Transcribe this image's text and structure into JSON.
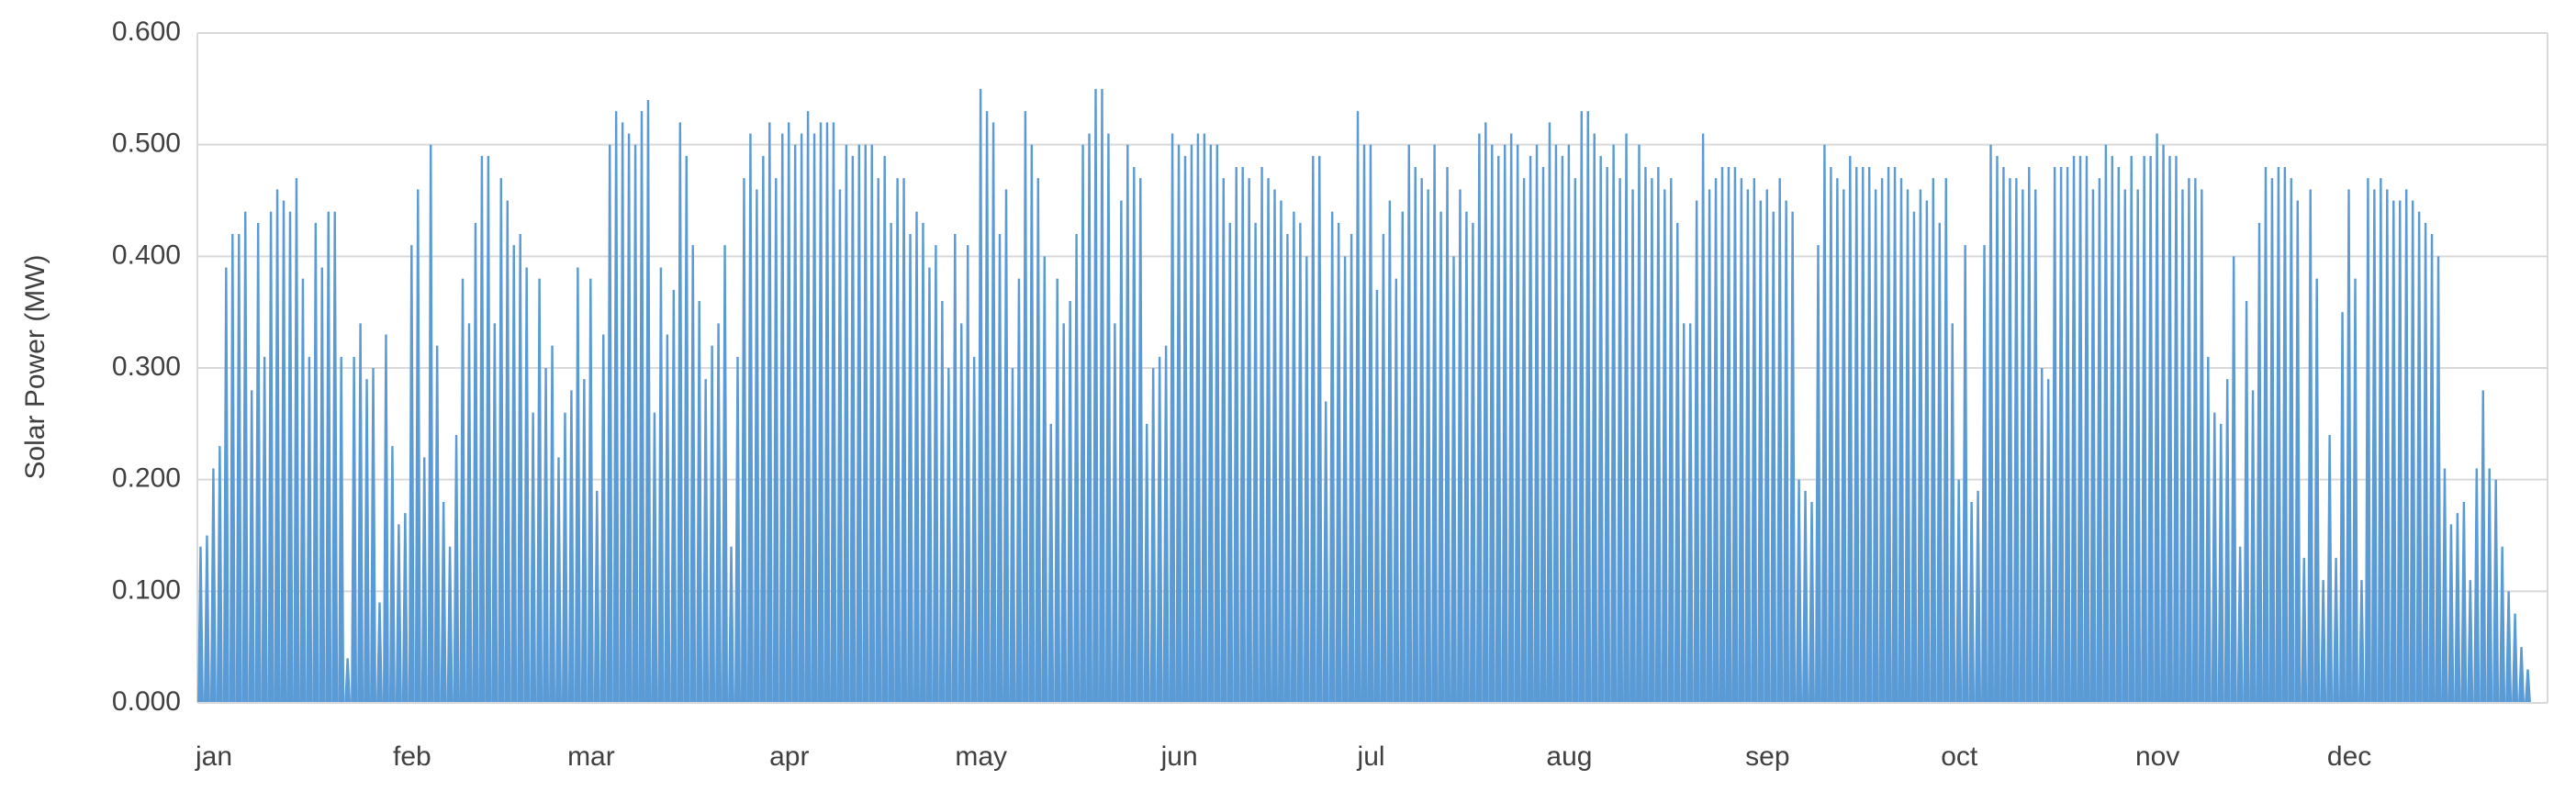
{
  "chart_data": {
    "type": "spikes",
    "y_label": "Solar Power (MW)",
    "color": "#5b9bd5",
    "grid": true,
    "categories": [
      "jan",
      "feb",
      "mar",
      "apr",
      "may",
      "jun",
      "jul",
      "aug",
      "sep",
      "oct",
      "nov",
      "dec"
    ],
    "values": [
      [
        0.14,
        0.15,
        0.21,
        0.23,
        0.39,
        0.42,
        0.42,
        0.44,
        0.28,
        0.43,
        0.31,
        0.44,
        0.46,
        0.45,
        0.44,
        0.47,
        0.38,
        0.31,
        0.43,
        0.39,
        0.44,
        0.44,
        0.31,
        0.04,
        0.31,
        0.34,
        0.29,
        0.3,
        0.09,
        0.33,
        0.23
      ],
      [
        0.16,
        0.17,
        0.41,
        0.46,
        0.22,
        0.5,
        0.32,
        0.18,
        0.14,
        0.24,
        0.38,
        0.34,
        0.43,
        0.49,
        0.49,
        0.34,
        0.47,
        0.45,
        0.41,
        0.42,
        0.39,
        0.26,
        0.38,
        0.3,
        0.32,
        0.22,
        0.26,
        0.28
      ],
      [
        0.39,
        0.29,
        0.38,
        0.19,
        0.33,
        0.5,
        0.53,
        0.52,
        0.51,
        0.5,
        0.53,
        0.54,
        0.26,
        0.39,
        0.33,
        0.37,
        0.52,
        0.49,
        0.41,
        0.36,
        0.29,
        0.32,
        0.34,
        0.41,
        0.14,
        0.31,
        0.47,
        0.51,
        0.46,
        0.49,
        0.52
      ],
      [
        0.47,
        0.51,
        0.52,
        0.5,
        0.51,
        0.53,
        0.51,
        0.52,
        0.52,
        0.52,
        0.46,
        0.5,
        0.49,
        0.5,
        0.5,
        0.5,
        0.47,
        0.49,
        0.43,
        0.47,
        0.47,
        0.42,
        0.44,
        0.43,
        0.39,
        0.41,
        0.36,
        0.3,
        0.42,
        0.34
      ],
      [
        0.41,
        0.31,
        0.55,
        0.53,
        0.52,
        0.42,
        0.46,
        0.3,
        0.38,
        0.53,
        0.5,
        0.47,
        0.4,
        0.25,
        0.38,
        0.34,
        0.36,
        0.42,
        0.5,
        0.51,
        0.55,
        0.55,
        0.51,
        0.34,
        0.45,
        0.5,
        0.48,
        0.47,
        0.25,
        0.3,
        0.31
      ],
      [
        0.32,
        0.51,
        0.5,
        0.49,
        0.5,
        0.51,
        0.51,
        0.5,
        0.5,
        0.47,
        0.43,
        0.48,
        0.48,
        0.47,
        0.43,
        0.48,
        0.47,
        0.46,
        0.45,
        0.42,
        0.44,
        0.43,
        0.4,
        0.49,
        0.49,
        0.27,
        0.44,
        0.43,
        0.4,
        0.42
      ],
      [
        0.53,
        0.5,
        0.5,
        0.37,
        0.42,
        0.45,
        0.38,
        0.44,
        0.5,
        0.48,
        0.47,
        0.46,
        0.5,
        0.44,
        0.48,
        0.4,
        0.46,
        0.44,
        0.43,
        0.51,
        0.52,
        0.5,
        0.49,
        0.5,
        0.51,
        0.5,
        0.47,
        0.49,
        0.5,
        0.48,
        0.52
      ],
      [
        0.5,
        0.49,
        0.5,
        0.47,
        0.53,
        0.53,
        0.51,
        0.49,
        0.48,
        0.5,
        0.47,
        0.51,
        0.46,
        0.5,
        0.48,
        0.47,
        0.48,
        0.46,
        0.47,
        0.43,
        0.34,
        0.34,
        0.45,
        0.51,
        0.46,
        0.47,
        0.48,
        0.48,
        0.48,
        0.47,
        0.46
      ],
      [
        0.47,
        0.45,
        0.46,
        0.44,
        0.47,
        0.45,
        0.44,
        0.2,
        0.19,
        0.18,
        0.41,
        0.5,
        0.48,
        0.47,
        0.46,
        0.49,
        0.48,
        0.48,
        0.48,
        0.46,
        0.47,
        0.48,
        0.48,
        0.47,
        0.46,
        0.44,
        0.46,
        0.45,
        0.47,
        0.43
      ],
      [
        0.47,
        0.34,
        0.2,
        0.41,
        0.18,
        0.19,
        0.41,
        0.5,
        0.49,
        0.48,
        0.47,
        0.47,
        0.46,
        0.48,
        0.46,
        0.3,
        0.29,
        0.48,
        0.48,
        0.48,
        0.49,
        0.49,
        0.49,
        0.46,
        0.47,
        0.5,
        0.49,
        0.48,
        0.46,
        0.49,
        0.46
      ],
      [
        0.49,
        0.49,
        0.51,
        0.5,
        0.49,
        0.49,
        0.46,
        0.47,
        0.47,
        0.46,
        0.31,
        0.26,
        0.25,
        0.29,
        0.4,
        0.14,
        0.36,
        0.28,
        0.43,
        0.48,
        0.47,
        0.48,
        0.48,
        0.47,
        0.45,
        0.13,
        0.46,
        0.38,
        0.11,
        0.24
      ],
      [
        0.13,
        0.35,
        0.46,
        0.38,
        0.11,
        0.47,
        0.46,
        0.47,
        0.46,
        0.45,
        0.45,
        0.46,
        0.45,
        0.44,
        0.43,
        0.42,
        0.4,
        0.21,
        0.16,
        0.17,
        0.18,
        0.11,
        0.21,
        0.28,
        0.21,
        0.2,
        0.14,
        0.1,
        0.08,
        0.05,
        0.03
      ]
    ],
    "ylim": [
      0,
      0.6
    ],
    "yticks": [
      {
        "value": 0,
        "label": "0.000"
      },
      {
        "value": 0.1,
        "label": "0.100"
      },
      {
        "value": 0.2,
        "label": "0.200"
      },
      {
        "value": 0.3,
        "label": "0.300"
      },
      {
        "value": 0.4,
        "label": "0.400"
      },
      {
        "value": 0.5,
        "label": "0.500"
      },
      {
        "value": 0.6,
        "label": "0.600"
      }
    ]
  }
}
